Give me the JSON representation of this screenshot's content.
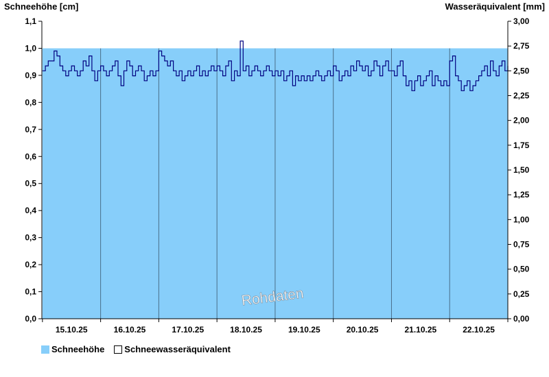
{
  "chart_data": {
    "type": "area",
    "title": "",
    "ylabel_left": "Schneehöhe [cm]",
    "ylabel_right": "Wasseräquivalent [mm]",
    "ylim_left": [
      0,
      1.1
    ],
    "ylim_right": [
      0,
      3.0
    ],
    "yticks_left": [
      "0,0",
      "0,1",
      "0,2",
      "0,3",
      "0,4",
      "0,5",
      "0,6",
      "0,7",
      "0,8",
      "0,9",
      "1,0",
      "1,1"
    ],
    "yticks_right": [
      "0,00",
      "0,25",
      "0,50",
      "0,75",
      "1,00",
      "1,25",
      "1,50",
      "1,75",
      "2,00",
      "2,25",
      "2,50",
      "2,75",
      "3,00"
    ],
    "x_categories": [
      "15.10.25",
      "16.10.25",
      "17.10.25",
      "18.10.25",
      "19.10.25",
      "20.10.25",
      "21.10.25",
      "22.10.25"
    ],
    "x_range_days": [
      14.99,
      23.0
    ],
    "grid": "vertical day separators",
    "watermark": "Rohdaten",
    "series": [
      {
        "name": "Schneehöhe",
        "axis": "left",
        "kind": "area",
        "color": "#87cefa",
        "x": [
          15.0,
          23.0
        ],
        "values": [
          1.0,
          1.0
        ]
      },
      {
        "name": "Schneewasseräquivalent",
        "axis": "right",
        "kind": "line",
        "color": "#000080",
        "x": [
          15.0,
          15.05,
          15.1,
          15.15,
          15.2,
          15.25,
          15.3,
          15.35,
          15.4,
          15.45,
          15.5,
          15.55,
          15.6,
          15.65,
          15.7,
          15.75,
          15.8,
          15.85,
          15.9,
          15.95,
          16.0,
          16.05,
          16.1,
          16.15,
          16.2,
          16.25,
          16.3,
          16.35,
          16.4,
          16.45,
          16.5,
          16.55,
          16.6,
          16.65,
          16.7,
          16.75,
          16.8,
          16.85,
          16.9,
          16.95,
          17.0,
          17.05,
          17.1,
          17.15,
          17.2,
          17.25,
          17.3,
          17.35,
          17.4,
          17.45,
          17.5,
          17.55,
          17.6,
          17.65,
          17.7,
          17.75,
          17.8,
          17.85,
          17.9,
          17.95,
          18.0,
          18.05,
          18.1,
          18.15,
          18.2,
          18.25,
          18.3,
          18.35,
          18.4,
          18.45,
          18.5,
          18.55,
          18.6,
          18.65,
          18.7,
          18.75,
          18.8,
          18.85,
          18.9,
          18.95,
          19.0,
          19.05,
          19.1,
          19.15,
          19.2,
          19.25,
          19.3,
          19.35,
          19.4,
          19.45,
          19.5,
          19.55,
          19.6,
          19.65,
          19.7,
          19.75,
          19.8,
          19.85,
          19.9,
          19.95,
          20.0,
          20.05,
          20.1,
          20.15,
          20.2,
          20.25,
          20.3,
          20.35,
          20.4,
          20.45,
          20.5,
          20.55,
          20.6,
          20.65,
          20.7,
          20.75,
          20.8,
          20.85,
          20.9,
          20.95,
          21.0,
          21.05,
          21.1,
          21.15,
          21.2,
          21.25,
          21.3,
          21.35,
          21.4,
          21.45,
          21.5,
          21.55,
          21.6,
          21.65,
          21.7,
          21.75,
          21.8,
          21.85,
          21.9,
          21.95,
          22.0,
          22.05,
          22.1,
          22.15,
          22.2,
          22.25,
          22.3,
          22.35,
          22.4,
          22.45,
          22.5,
          22.55,
          22.6,
          22.65,
          22.7,
          22.75,
          22.8,
          22.85,
          22.9,
          22.95,
          23.0
        ],
        "values": [
          2.5,
          2.55,
          2.6,
          2.6,
          2.7,
          2.65,
          2.55,
          2.5,
          2.45,
          2.5,
          2.55,
          2.5,
          2.45,
          2.5,
          2.6,
          2.55,
          2.65,
          2.5,
          2.4,
          2.5,
          2.55,
          2.5,
          2.45,
          2.5,
          2.55,
          2.6,
          2.45,
          2.35,
          2.5,
          2.6,
          2.55,
          2.45,
          2.5,
          2.55,
          2.5,
          2.4,
          2.45,
          2.5,
          2.45,
          2.5,
          2.7,
          2.65,
          2.6,
          2.55,
          2.6,
          2.5,
          2.45,
          2.5,
          2.4,
          2.45,
          2.5,
          2.45,
          2.5,
          2.55,
          2.45,
          2.5,
          2.45,
          2.5,
          2.55,
          2.5,
          2.55,
          2.5,
          2.45,
          2.55,
          2.6,
          2.4,
          2.5,
          2.45,
          2.8,
          2.5,
          2.55,
          2.45,
          2.5,
          2.55,
          2.5,
          2.45,
          2.5,
          2.55,
          2.5,
          2.45,
          2.5,
          2.45,
          2.5,
          2.4,
          2.45,
          2.5,
          2.35,
          2.45,
          2.4,
          2.45,
          2.4,
          2.45,
          2.4,
          2.45,
          2.5,
          2.45,
          2.4,
          2.45,
          2.5,
          2.45,
          2.55,
          2.5,
          2.4,
          2.45,
          2.5,
          2.45,
          2.55,
          2.5,
          2.6,
          2.55,
          2.5,
          2.55,
          2.45,
          2.5,
          2.6,
          2.55,
          2.45,
          2.55,
          2.6,
          2.5,
          2.5,
          2.45,
          2.55,
          2.6,
          2.45,
          2.35,
          2.4,
          2.3,
          2.4,
          2.45,
          2.35,
          2.4,
          2.45,
          2.5,
          2.35,
          2.45,
          2.4,
          2.35,
          2.4,
          2.35,
          2.6,
          2.65,
          2.45,
          2.4,
          2.3,
          2.35,
          2.4,
          2.3,
          2.35,
          2.4,
          2.45,
          2.5,
          2.55,
          2.45,
          2.6,
          2.5,
          2.45,
          2.55,
          2.6,
          2.5,
          2.55
        ]
      }
    ]
  },
  "legend": {
    "area_label": "Schneehöhe",
    "line_label": "Schneewasseräquivalent"
  }
}
